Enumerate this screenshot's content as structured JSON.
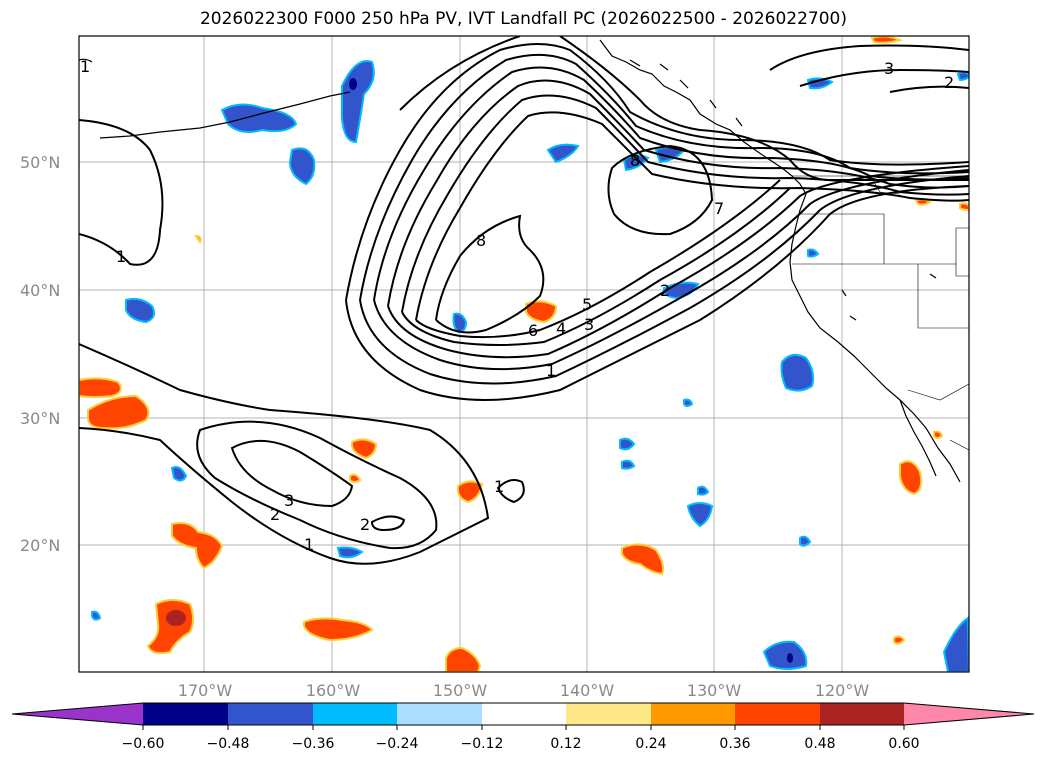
{
  "title": "2026022300 F000 250 hPa PV, IVT Landfall PC (2026022500 - 2026022700)",
  "map": {
    "lon_labels": [
      "170°W",
      "160°W",
      "150°W",
      "140°W",
      "130°W",
      "120°W"
    ],
    "lat_labels": [
      "50°N",
      "40°N",
      "30°N",
      "20°N"
    ],
    "contour_labels": [
      "1",
      "1",
      "2",
      "3",
      "1",
      "1",
      "2",
      "3",
      "4",
      "5",
      "6",
      "7",
      "8",
      "8",
      "2",
      "2",
      "3",
      "1"
    ]
  },
  "colorbar": {
    "ticks": [
      "−0.60",
      "−0.48",
      "−0.36",
      "−0.24",
      "−0.12",
      "0.12",
      "0.24",
      "0.36",
      "0.48",
      "0.60"
    ],
    "colors": [
      "#9933cc",
      "#000088",
      "#3355cc",
      "#00bbff",
      "#aaddff",
      "#ffffff",
      "#ffe888",
      "#ff9900",
      "#ff4400",
      "#aa2222",
      "#ff88aa"
    ]
  },
  "colors": {
    "neg_fill": "#3355cc",
    "neg_edge": "#00bbff",
    "pos_fill": "#ff4400",
    "pos_edge": "#ffcc33",
    "strong_pos": "#aa2222",
    "strong_neg": "#000088"
  }
}
